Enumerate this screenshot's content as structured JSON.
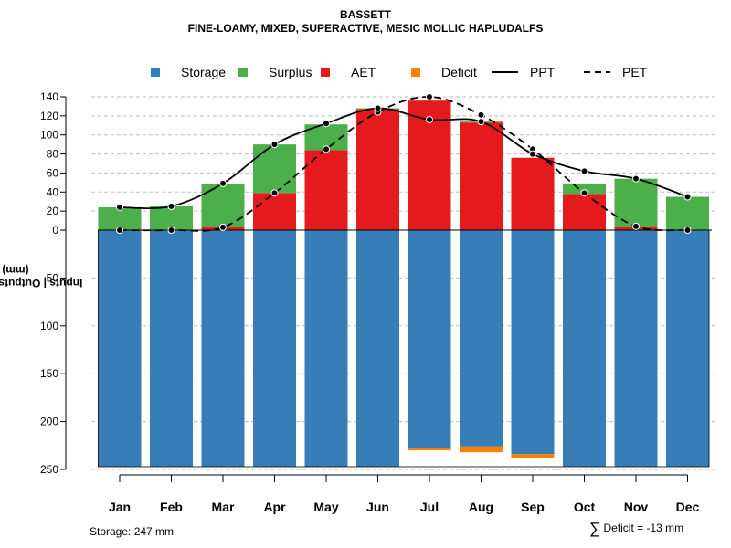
{
  "chart_data": {
    "type": "bar",
    "title": "BASSETT",
    "subtitle": "FINE-LOAMY, MIXED, SUPERACTIVE, MESIC MOLLIC HAPLUDALFS",
    "ylabel": "Inputs | Outputs | Storage",
    "ylabel_unit": "(mm)",
    "xlabel": "",
    "categories": [
      "Jan",
      "Feb",
      "Mar",
      "Apr",
      "May",
      "Jun",
      "Jul",
      "Aug",
      "Sep",
      "Oct",
      "Nov",
      "Dec"
    ],
    "upper_ylim": [
      0,
      140
    ],
    "upper_ticks": [
      0,
      20,
      40,
      60,
      80,
      100,
      120,
      140
    ],
    "lower_ylim": [
      0,
      250
    ],
    "lower_ticks": [
      0,
      50,
      100,
      150,
      200,
      250
    ],
    "grid": true,
    "legend_position": "top",
    "legend": [
      {
        "key": "storage",
        "label": "Storage",
        "kind": "box",
        "color": "#377EB8"
      },
      {
        "key": "surplus",
        "label": "Surplus",
        "kind": "box",
        "color": "#4DAF4A"
      },
      {
        "key": "aet",
        "label": "AET",
        "kind": "box",
        "color": "#E41A1C"
      },
      {
        "key": "deficit",
        "label": "Deficit",
        "kind": "box",
        "color": "#FF7F00"
      },
      {
        "key": "ppt",
        "label": "PPT",
        "kind": "solid-line",
        "color": "#000000"
      },
      {
        "key": "pet",
        "label": "PET",
        "kind": "dashed-line",
        "color": "#000000"
      }
    ],
    "series": [
      {
        "name": "AET",
        "color": "#E41A1C",
        "values": [
          0,
          0,
          3,
          39,
          84,
          127,
          136,
          113,
          76,
          38,
          3,
          0
        ]
      },
      {
        "name": "Surplus",
        "color": "#4DAF4A",
        "values": [
          24,
          25,
          45,
          51,
          27,
          1,
          0,
          1,
          0,
          11,
          51,
          35
        ]
      },
      {
        "name": "Storage",
        "color": "#377EB8",
        "values": [
          247,
          247,
          247,
          247,
          247,
          247,
          228,
          226,
          234,
          247,
          247,
          247
        ]
      },
      {
        "name": "Deficit",
        "color": "#FF7F00",
        "values": [
          0,
          0,
          0,
          0,
          0,
          0,
          2,
          6,
          4,
          0,
          0,
          0
        ]
      },
      {
        "name": "PPT",
        "color": "#000000",
        "values": [
          24,
          25,
          49,
          90,
          112,
          128,
          116,
          114,
          80,
          62,
          54,
          35
        ]
      },
      {
        "name": "PET",
        "color": "#000000",
        "values": [
          0,
          0,
          3,
          39,
          85,
          124,
          140,
          121,
          85,
          39,
          4,
          0
        ]
      }
    ]
  },
  "footer": {
    "storage_note": "Storage: 247 mm",
    "deficit_sigma": "∑",
    "deficit_note": "Deficit = -13 mm"
  }
}
